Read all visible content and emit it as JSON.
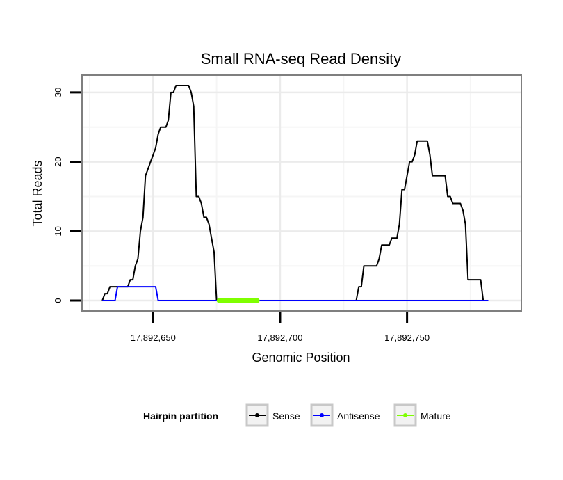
{
  "chart_data": {
    "type": "line",
    "title": "Small RNA-seq Read Density",
    "xlabel": "Genomic Position",
    "ylabel": "Total Reads",
    "xlim": [
      17892622,
      17892795
    ],
    "ylim": [
      -1.5,
      32.5
    ],
    "grid": true,
    "x_ticks": [
      17892650,
      17892700,
      17892750
    ],
    "x_tick_labels": [
      "17,892,650",
      "17,892,700",
      "17,892,750"
    ],
    "y_ticks": [
      0,
      10,
      20,
      30
    ],
    "y_tick_labels": [
      "0",
      "10",
      "20",
      "30"
    ],
    "legend": {
      "title": "Hairpin partition",
      "position": "bottom",
      "entries": [
        {
          "label": "Sense",
          "color": "#000000"
        },
        {
          "label": "Antisense",
          "color": "#0000ff"
        },
        {
          "label": "Mature",
          "color": "#7fff00"
        }
      ]
    },
    "series": [
      {
        "name": "Sense",
        "color": "#000000",
        "x": [
          17892630,
          17892631,
          17892632,
          17892633,
          17892634,
          17892635,
          17892636,
          17892637,
          17892638,
          17892639,
          17892640,
          17892641,
          17892642,
          17892643,
          17892644,
          17892645,
          17892646,
          17892647,
          17892648,
          17892649,
          17892650,
          17892651,
          17892652,
          17892653,
          17892654,
          17892655,
          17892656,
          17892657,
          17892658,
          17892659,
          17892660,
          17892661,
          17892662,
          17892663,
          17892664,
          17892665,
          17892666,
          17892667,
          17892668,
          17892669,
          17892670,
          17892671,
          17892672,
          17892673,
          17892674,
          17892675,
          17892700,
          17892730,
          17892731,
          17892732,
          17892733,
          17892734,
          17892735,
          17892736,
          17892737,
          17892738,
          17892739,
          17892740,
          17892741,
          17892742,
          17892743,
          17892744,
          17892745,
          17892746,
          17892747,
          17892748,
          17892749,
          17892750,
          17892751,
          17892752,
          17892753,
          17892754,
          17892755,
          17892756,
          17892757,
          17892758,
          17892759,
          17892760,
          17892761,
          17892762,
          17892763,
          17892764,
          17892765,
          17892766,
          17892767,
          17892768,
          17892769,
          17892770,
          17892771,
          17892772,
          17892773,
          17892774,
          17892775,
          17892776,
          17892777,
          17892778,
          17892779,
          17892780,
          17892781,
          17892782
        ],
        "y": [
          0,
          1,
          1,
          2,
          2,
          2,
          2,
          2,
          2,
          2,
          2,
          3,
          3,
          5,
          6,
          10,
          12,
          18,
          19,
          20,
          21,
          22,
          24,
          25,
          25,
          25,
          26,
          30,
          30,
          31,
          31,
          31,
          31,
          31,
          31,
          30,
          28,
          15,
          15,
          14,
          12,
          12,
          11,
          9,
          7,
          0,
          0,
          0,
          2,
          2,
          5,
          5,
          5,
          5,
          5,
          5,
          6,
          8,
          8,
          8,
          8,
          9,
          9,
          9,
          11,
          16,
          16,
          18,
          20,
          20,
          21,
          23,
          23,
          23,
          23,
          23,
          21,
          18,
          18,
          18,
          18,
          18,
          18,
          15,
          15,
          14,
          14,
          14,
          14,
          13,
          11,
          3,
          3,
          3,
          3,
          3,
          3,
          0,
          0,
          0
        ]
      },
      {
        "name": "Antisense",
        "color": "#0000ff",
        "x": [
          17892630,
          17892635,
          17892636,
          17892651,
          17892652,
          17892700,
          17892782
        ],
        "y": [
          0,
          0,
          2,
          2,
          0,
          0,
          0
        ]
      },
      {
        "name": "Mature",
        "color": "#7fff00",
        "x": [
          17892676,
          17892691
        ],
        "y": [
          0,
          0
        ]
      }
    ]
  }
}
